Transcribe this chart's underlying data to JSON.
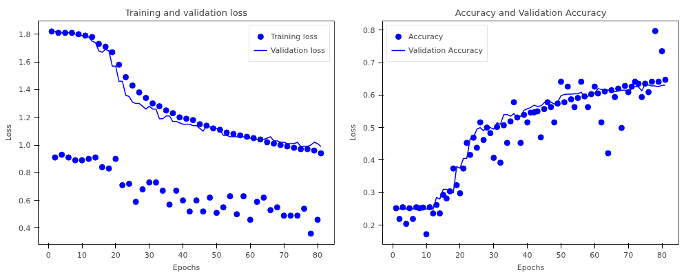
{
  "chart_data": [
    {
      "type": "scatter",
      "title": "Training and validation loss",
      "xlabel": "Epochs",
      "ylabel": "Loss",
      "x": [
        1,
        2,
        3,
        4,
        5,
        6,
        7,
        8,
        9,
        10,
        11,
        12,
        13,
        14,
        15,
        16,
        17,
        18,
        19,
        20,
        21,
        22,
        23,
        24,
        25,
        26,
        27,
        28,
        29,
        30,
        31,
        32,
        33,
        34,
        35,
        36,
        37,
        38,
        39,
        40,
        41,
        42,
        43,
        44,
        45,
        46,
        47,
        48,
        49,
        50,
        51,
        52,
        53,
        54,
        55,
        56,
        57,
        58,
        59,
        60,
        61,
        62,
        63,
        64,
        65,
        66,
        67,
        68,
        69,
        70,
        71,
        72,
        73,
        74,
        75,
        76,
        77,
        78,
        79,
        80,
        81
      ],
      "series": [
        {
          "name": "Training loss",
          "marker": "circle",
          "color": "#0000ff",
          "values": [
            1.82,
            0.91,
            1.81,
            0.93,
            1.81,
            0.91,
            1.81,
            0.89,
            1.8,
            0.89,
            1.79,
            0.9,
            1.78,
            0.91,
            1.73,
            0.84,
            1.71,
            0.83,
            1.67,
            0.9,
            1.58,
            0.71,
            1.49,
            0.72,
            1.43,
            0.59,
            1.38,
            0.68,
            1.34,
            0.73,
            1.3,
            0.73,
            1.28,
            0.67,
            1.25,
            0.57,
            1.23,
            0.67,
            1.2,
            0.6,
            1.19,
            0.52,
            1.18,
            0.6,
            1.15,
            0.52,
            1.14,
            0.62,
            1.12,
            0.51,
            1.11,
            0.55,
            1.09,
            0.63,
            1.08,
            0.5,
            1.07,
            0.63,
            1.06,
            0.46,
            1.05,
            0.59,
            1.04,
            0.62,
            1.02,
            0.53,
            1.01,
            0.55,
            1.0,
            0.49,
            0.99,
            0.49,
            0.98,
            0.49,
            0.97,
            0.54,
            0.97,
            0.36,
            0.96,
            0.46,
            0.94
          ]
        },
        {
          "name": "Validation loss",
          "type": "line",
          "marker": "none",
          "color": "#0000ff",
          "values": [
            1.82,
            1.82,
            1.81,
            1.81,
            1.81,
            1.81,
            1.81,
            1.8,
            1.8,
            1.79,
            1.79,
            1.78,
            1.75,
            1.74,
            1.68,
            1.67,
            1.69,
            1.68,
            1.57,
            1.57,
            1.46,
            1.46,
            1.36,
            1.35,
            1.31,
            1.3,
            1.3,
            1.28,
            1.26,
            1.28,
            1.26,
            1.26,
            1.19,
            1.19,
            1.21,
            1.21,
            1.17,
            1.17,
            1.16,
            1.15,
            1.15,
            1.15,
            1.14,
            1.14,
            1.12,
            1.1,
            1.14,
            1.13,
            1.13,
            1.12,
            1.11,
            1.07,
            1.07,
            1.06,
            1.06,
            1.06,
            1.06,
            1.06,
            1.06,
            1.05,
            1.05,
            1.04,
            1.04,
            1.04,
            1.05,
            1.06,
            1.03,
            1.03,
            1.02,
            1.02,
            1.01,
            1.01,
            1.01,
            1.02,
            0.99,
            0.99,
            0.99,
            1.0,
            1.02,
            1.01,
            0.99
          ]
        }
      ],
      "xlim": [
        -3,
        85
      ],
      "ylim": [
        0.283,
        1.896
      ],
      "xticks": [
        0,
        10,
        20,
        30,
        40,
        50,
        60,
        70,
        80
      ],
      "yticks": [
        0.4,
        0.6,
        0.8,
        {
          "value": 1.0,
          "label": "1.0"
        },
        1.2,
        1.4,
        1.6,
        1.8
      ],
      "legend": "top right",
      "line_style": "solid"
    },
    {
      "type": "scatter",
      "title": "Accuracy and Validation Accuracy",
      "xlabel": "Epochs",
      "ylabel": "Loss",
      "x": [
        1,
        2,
        3,
        4,
        5,
        6,
        7,
        8,
        9,
        10,
        11,
        12,
        13,
        14,
        15,
        16,
        17,
        18,
        19,
        20,
        21,
        22,
        23,
        24,
        25,
        26,
        27,
        28,
        29,
        30,
        31,
        32,
        33,
        34,
        35,
        36,
        37,
        38,
        39,
        40,
        41,
        42,
        43,
        44,
        45,
        46,
        47,
        48,
        49,
        50,
        51,
        52,
        53,
        54,
        55,
        56,
        57,
        58,
        59,
        60,
        61,
        62,
        63,
        64,
        65,
        66,
        67,
        68,
        69,
        70,
        71,
        72,
        73,
        74,
        75,
        76,
        77,
        78,
        79,
        80,
        81
      ],
      "series": [
        {
          "name": "Accuracy",
          "marker": "circle",
          "color": "#0000ff",
          "values": [
            0.252,
            0.219,
            0.255,
            0.204,
            0.252,
            0.219,
            0.255,
            0.252,
            0.254,
            0.172,
            0.255,
            0.236,
            0.262,
            0.236,
            0.293,
            0.282,
            0.304,
            0.374,
            0.323,
            0.298,
            0.374,
            0.453,
            0.416,
            0.469,
            0.438,
            0.516,
            0.462,
            0.5,
            0.483,
            0.407,
            0.502,
            0.392,
            0.507,
            0.453,
            0.519,
            0.578,
            0.531,
            0.453,
            0.539,
            0.516,
            0.546,
            0.547,
            0.55,
            0.47,
            0.557,
            0.578,
            0.563,
            0.516,
            0.574,
            0.641,
            0.578,
            0.626,
            0.587,
            0.563,
            0.591,
            0.641,
            0.596,
            0.563,
            0.603,
            0.626,
            0.605,
            0.516,
            0.611,
            0.421,
            0.615,
            0.594,
            0.62,
            0.499,
            0.628,
            0.609,
            0.626,
            0.641,
            0.635,
            0.594,
            0.635,
            0.609,
            0.641,
            0.797,
            0.641,
            0.735,
            0.647
          ]
        },
        {
          "name": "Validation Accuracy",
          "type": "line",
          "marker": "none",
          "color": "#0000ff",
          "values": [
            0.25,
            0.25,
            0.25,
            0.25,
            0.25,
            0.25,
            0.25,
            0.25,
            0.25,
            0.25,
            0.25,
            0.25,
            0.285,
            0.28,
            0.31,
            0.31,
            0.3,
            0.3,
            0.38,
            0.375,
            0.405,
            0.405,
            0.465,
            0.47,
            0.495,
            0.5,
            0.49,
            0.505,
            0.5,
            0.495,
            0.515,
            0.51,
            0.54,
            0.54,
            0.535,
            0.543,
            0.531,
            0.535,
            0.553,
            0.558,
            0.562,
            0.569,
            0.565,
            0.567,
            0.576,
            0.582,
            0.579,
            0.572,
            0.579,
            0.598,
            0.602,
            0.603,
            0.603,
            0.604,
            0.604,
            0.609,
            0.593,
            0.596,
            0.603,
            0.606,
            0.62,
            0.617,
            0.617,
            0.615,
            0.613,
            0.61,
            0.613,
            0.615,
            0.615,
            0.606,
            0.62,
            0.626,
            0.625,
            0.613,
            0.634,
            0.631,
            0.628,
            0.628,
            0.626,
            0.63,
            0.631
          ]
        }
      ],
      "xlim": [
        -3,
        85
      ],
      "ylim": [
        0.141,
        0.828
      ],
      "xticks": [
        0,
        10,
        20,
        30,
        40,
        50,
        60,
        70,
        80
      ],
      "yticks": [
        0.2,
        0.3,
        0.4,
        0.5,
        0.6,
        0.7,
        0.8
      ],
      "legend": "top left",
      "line_style": "solid"
    }
  ]
}
